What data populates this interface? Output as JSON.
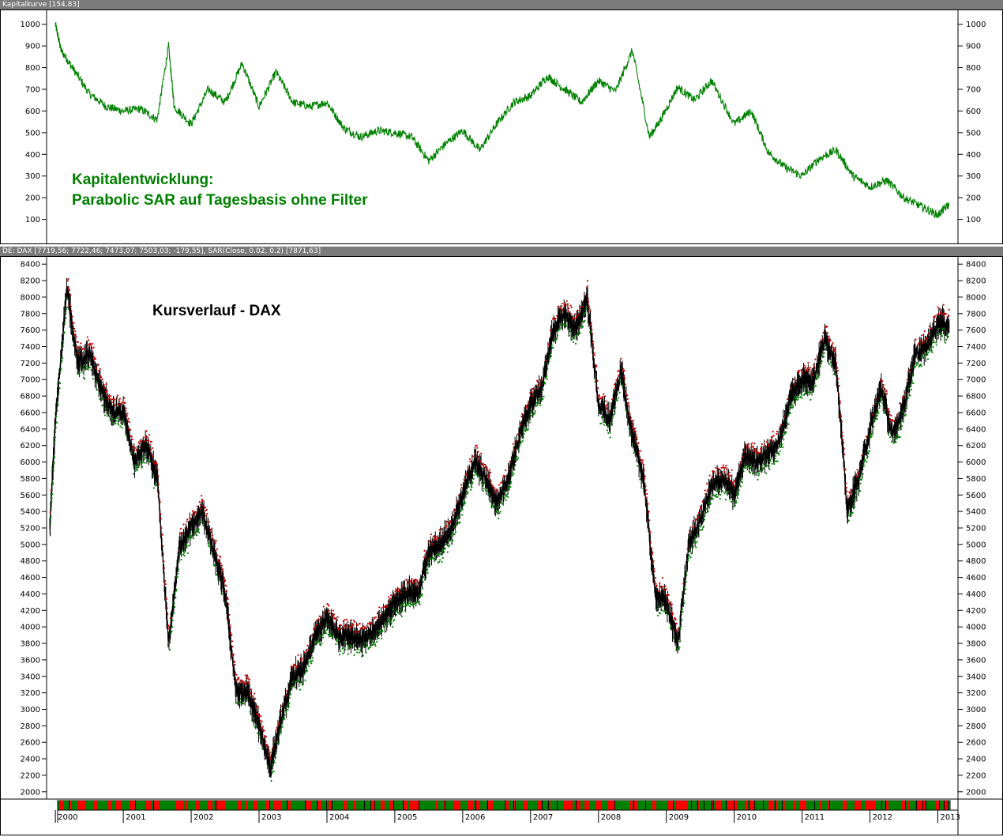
{
  "top_pane": {
    "title": "Kapitalkurve [154,83]",
    "annotation_line1": "Kapitalentwicklung:",
    "annotation_line2": "Parabolic SAR auf Tagesbasis ohne Filter"
  },
  "bottom_pane": {
    "title": "DE: DAX [7719,56; 7722,46; 7473,07; 7503,03; -179,55],  SAR(Close, 0.02, 0.2) [7871,63]",
    "annotation": "Kursverlauf - DAX"
  },
  "colors": {
    "equity": "#008000",
    "price": "#000000",
    "sar_up": "#008000",
    "sar_down": "#cc0000",
    "strip_green": "#008000",
    "strip_red": "#ff0000"
  },
  "chart_data": [
    {
      "type": "line",
      "title": "Kapitalkurve [154,83]",
      "ylim": [
        0,
        1050
      ],
      "yticks": [
        100,
        200,
        300,
        400,
        500,
        600,
        700,
        800,
        900,
        1000
      ],
      "x": [
        "2000-01",
        "2000-02",
        "2000-04",
        "2000-07",
        "2000-10",
        "2001-01",
        "2001-04",
        "2001-07",
        "2001-09",
        "2001-10",
        "2002-01",
        "2002-04",
        "2002-07",
        "2002-10",
        "2003-01",
        "2003-04",
        "2003-07",
        "2003-10",
        "2004-01",
        "2004-04",
        "2004-07",
        "2004-10",
        "2005-01",
        "2005-04",
        "2005-07",
        "2005-10",
        "2006-01",
        "2006-04",
        "2006-07",
        "2006-10",
        "2007-01",
        "2007-04",
        "2007-07",
        "2007-10",
        "2008-01",
        "2008-04",
        "2008-07",
        "2008-10",
        "2008-12",
        "2009-03",
        "2009-06",
        "2009-09",
        "2010-01",
        "2010-04",
        "2010-07",
        "2010-10",
        "2011-01",
        "2011-04",
        "2011-07",
        "2011-10",
        "2012-01",
        "2012-04",
        "2012-07",
        "2012-10",
        "2013-01",
        "2013-03"
      ],
      "series": [
        {
          "values": [
            1000,
            880,
            800,
            680,
            620,
            600,
            610,
            560,
            900,
            620,
            540,
            700,
            640,
            820,
            620,
            780,
            640,
            620,
            640,
            520,
            480,
            510,
            500,
            480,
            370,
            450,
            510,
            420,
            540,
            640,
            670,
            760,
            700,
            640,
            740,
            690,
            880,
            480,
            560,
            710,
            650,
            740,
            540,
            600,
            410,
            340,
            300,
            380,
            420,
            300,
            250,
            280,
            200,
            160,
            120,
            170
          ]
        }
      ]
    },
    {
      "type": "line",
      "title": "DE: DAX [7719,56; 7722,46; 7473,07; 7503,03; -179,55],  SAR(Close, 0.02, 0.2) [7871,63]",
      "ylim": [
        1950,
        8450
      ],
      "yticks": [
        2000,
        2200,
        2400,
        2600,
        2800,
        3000,
        3200,
        3400,
        3600,
        3800,
        4000,
        4200,
        4400,
        4600,
        4800,
        5000,
        5200,
        5400,
        5600,
        5800,
        6000,
        6200,
        6400,
        6600,
        6800,
        7000,
        7200,
        7400,
        7600,
        7800,
        8000,
        8200,
        8400
      ],
      "x_labels": [
        "2000",
        "2001",
        "2002",
        "2003",
        "2004",
        "2005",
        "2006",
        "2007",
        "2008",
        "2009",
        "2010",
        "2011",
        "2012",
        "2013"
      ],
      "x": [
        "1999-12",
        "2000-01",
        "2000-03",
        "2000-05",
        "2000-07",
        "2000-09",
        "2000-11",
        "2001-01",
        "2001-03",
        "2001-05",
        "2001-07",
        "2001-09",
        "2001-11",
        "2002-01",
        "2002-03",
        "2002-05",
        "2002-07",
        "2002-09",
        "2002-11",
        "2003-01",
        "2003-03",
        "2003-05",
        "2003-07",
        "2003-09",
        "2003-11",
        "2004-01",
        "2004-03",
        "2004-05",
        "2004-07",
        "2004-09",
        "2004-11",
        "2005-01",
        "2005-03",
        "2005-05",
        "2005-07",
        "2005-09",
        "2005-11",
        "2006-01",
        "2006-03",
        "2006-05",
        "2006-07",
        "2006-09",
        "2006-11",
        "2007-01",
        "2007-03",
        "2007-05",
        "2007-07",
        "2007-09",
        "2007-11",
        "2008-01",
        "2008-03",
        "2008-05",
        "2008-07",
        "2008-09",
        "2008-11",
        "2009-01",
        "2009-03",
        "2009-05",
        "2009-07",
        "2009-09",
        "2009-11",
        "2010-01",
        "2010-03",
        "2010-05",
        "2010-07",
        "2010-09",
        "2010-11",
        "2011-01",
        "2011-03",
        "2011-05",
        "2011-07",
        "2011-09",
        "2011-11",
        "2012-01",
        "2012-03",
        "2012-05",
        "2012-07",
        "2012-09",
        "2012-11",
        "2013-01",
        "2013-03"
      ],
      "series": [
        {
          "values": [
            5200,
            6500,
            8100,
            7200,
            7300,
            6900,
            6600,
            6600,
            6000,
            6200,
            5800,
            3800,
            5000,
            5200,
            5400,
            4900,
            4400,
            3200,
            3200,
            2800,
            2300,
            2900,
            3400,
            3500,
            3900,
            4100,
            3900,
            3900,
            3850,
            3900,
            4100,
            4300,
            4400,
            4400,
            4900,
            5000,
            5200,
            5600,
            6000,
            5800,
            5500,
            5800,
            6300,
            6700,
            6900,
            7600,
            7800,
            7600,
            8000,
            6700,
            6500,
            7100,
            6300,
            5800,
            4400,
            4300,
            3800,
            5000,
            5300,
            5700,
            5800,
            5600,
            6100,
            6000,
            6100,
            6250,
            6800,
            7000,
            7000,
            7500,
            7200,
            5400,
            5800,
            6400,
            6900,
            6300,
            6700,
            7300,
            7400,
            7700,
            7650
          ]
        }
      ]
    }
  ],
  "strip_pattern": [
    1,
    0,
    1,
    1,
    0,
    1,
    0,
    0,
    1,
    1,
    0,
    1,
    1,
    1,
    0,
    1,
    0,
    1,
    1,
    0,
    0,
    1,
    1,
    0,
    1,
    0,
    1,
    1,
    1,
    0,
    0,
    1,
    0,
    1,
    1,
    0,
    1,
    1,
    0,
    1,
    0,
    0,
    1,
    1,
    1,
    0,
    1,
    0,
    1,
    1
  ]
}
